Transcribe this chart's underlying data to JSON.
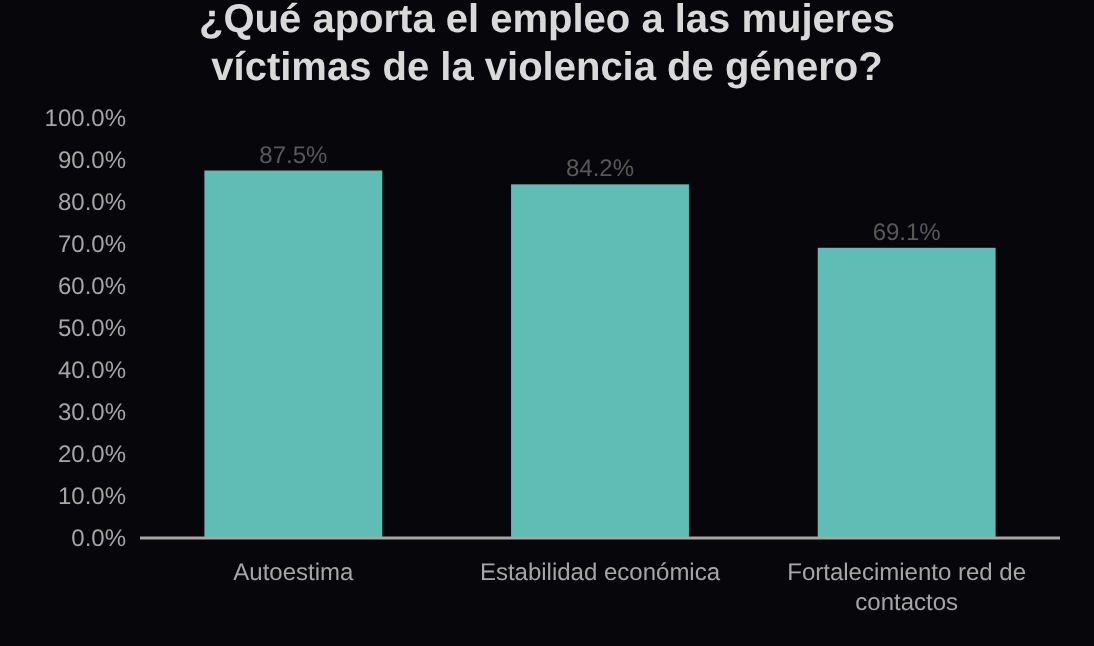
{
  "chart_data": {
    "type": "bar",
    "title": "¿Qué aporta el empleo a las mujeres víctimas de la violencia de género?",
    "categories": [
      "Autoestima",
      "Estabilidad económica",
      "Fortalecimiento red de contactos"
    ],
    "values": [
      87.5,
      84.2,
      69.1
    ],
    "color": "#5fbdb5",
    "value_labels": [
      "87.5%",
      "84.2%",
      "69.1%"
    ],
    "ylim": [
      0,
      100
    ],
    "yticks": [
      {
        "value": 0,
        "label": "0.0%"
      },
      {
        "value": 10,
        "label": "10.0%"
      },
      {
        "value": 20,
        "label": "20.0%"
      },
      {
        "value": 30,
        "label": "30.0%"
      },
      {
        "value": 40,
        "label": "40.0%"
      },
      {
        "value": 50,
        "label": "50.0%"
      },
      {
        "value": 60,
        "label": "60.0%"
      },
      {
        "value": 70,
        "label": "70.0%"
      },
      {
        "value": 80,
        "label": "80.0%"
      },
      {
        "value": 90,
        "label": "90.0%"
      },
      {
        "value": 100,
        "label": "100.0%"
      }
    ],
    "grid": false
  }
}
